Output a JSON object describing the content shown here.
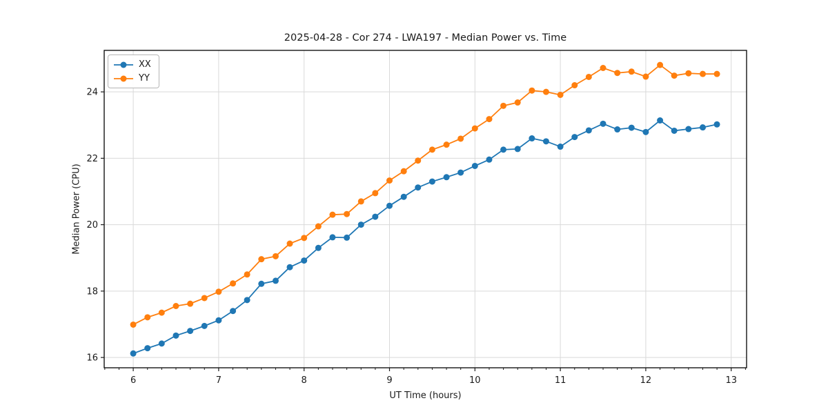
{
  "window": {
    "background": "#ffffff"
  },
  "chart_data": {
    "type": "line",
    "title": "2025-04-28 - Cor 274 - LWA197 - Median Power vs. Time",
    "xlabel": "UT Time (hours)",
    "ylabel": "Median Power (CPU)",
    "xlim": [
      5.66,
      13.18
    ],
    "ylim": [
      15.69,
      25.25
    ],
    "x_ticks": [
      6,
      7,
      8,
      9,
      10,
      11,
      12,
      13
    ],
    "y_ticks": [
      16,
      18,
      20,
      22,
      24
    ],
    "x_minor_tick_step": 0.16667,
    "grid": "major",
    "legend": {
      "position": "upper-left"
    },
    "x": [
      6.0,
      6.167,
      6.333,
      6.5,
      6.667,
      6.833,
      7.0,
      7.167,
      7.333,
      7.5,
      7.667,
      7.833,
      8.0,
      8.167,
      8.333,
      8.5,
      8.667,
      8.833,
      9.0,
      9.167,
      9.333,
      9.5,
      9.667,
      9.833,
      10.0,
      10.167,
      10.333,
      10.5,
      10.667,
      10.833,
      11.0,
      11.167,
      11.333,
      11.5,
      11.667,
      11.833,
      12.0,
      12.167,
      12.333,
      12.5,
      12.667,
      12.833
    ],
    "series": [
      {
        "name": "XX",
        "color": "#1f77b4",
        "marker": "circle",
        "values": [
          16.12,
          16.28,
          16.42,
          16.66,
          16.8,
          16.95,
          17.12,
          17.4,
          17.73,
          18.22,
          18.31,
          18.72,
          18.92,
          19.3,
          19.62,
          19.61,
          20.0,
          20.24,
          20.57,
          20.84,
          21.12,
          21.3,
          21.43,
          21.57,
          21.77,
          21.96,
          22.26,
          22.28,
          22.6,
          22.51,
          22.35,
          22.64,
          22.84,
          23.04,
          22.87,
          22.92,
          22.79,
          23.14,
          22.83,
          22.88,
          22.93,
          23.02
        ]
      },
      {
        "name": "YY",
        "color": "#ff7f0e",
        "marker": "circle",
        "values": [
          16.99,
          17.21,
          17.35,
          17.55,
          17.62,
          17.79,
          17.98,
          18.23,
          18.5,
          18.96,
          19.05,
          19.43,
          19.6,
          19.95,
          20.3,
          20.32,
          20.7,
          20.95,
          21.33,
          21.61,
          21.93,
          22.26,
          22.41,
          22.59,
          22.9,
          23.18,
          23.58,
          23.68,
          24.04,
          24.0,
          23.91,
          24.2,
          24.45,
          24.72,
          24.57,
          24.61,
          24.46,
          24.81,
          24.49,
          24.56,
          24.54,
          24.54
        ]
      }
    ],
    "styles": {
      "grid_color": "#d9d9d9",
      "spine_color": "#000000",
      "tick_color": "#1a1a1a",
      "text_color": "#1a1a1a"
    }
  }
}
